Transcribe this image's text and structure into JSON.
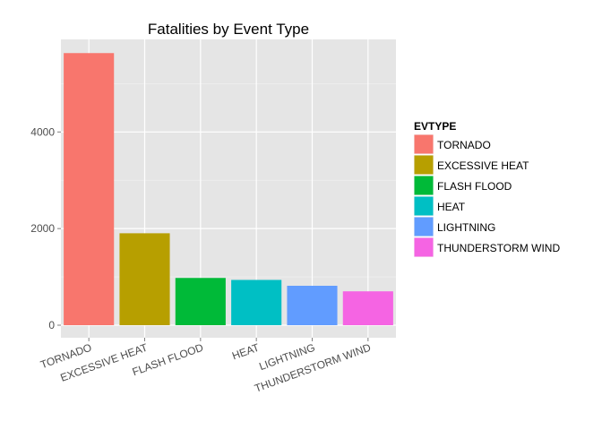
{
  "chart_data": {
    "type": "bar",
    "title": "Fatalities by Event Type",
    "xlabel": "",
    "ylabel": "",
    "categories": [
      "TORNADO",
      "EXCESSIVE HEAT",
      "FLASH FLOOD",
      "HEAT",
      "LIGHTNING",
      "THUNDERSTORM WIND"
    ],
    "values": [
      5633,
      1903,
      978,
      937,
      816,
      701
    ],
    "colors": [
      "#F8766D",
      "#B79F00",
      "#00BA38",
      "#00BFC4",
      "#619CFF",
      "#F564E3"
    ],
    "ylim": [
      0,
      5916
    ],
    "yticks": [
      0,
      2000,
      4000
    ],
    "ytick_labels": [
      "0",
      "2000",
      "4000"
    ],
    "grid": true,
    "legend": {
      "title": "EVTYPE",
      "placement": "right",
      "entries": [
        "TORNADO",
        "EXCESSIVE HEAT",
        "FLASH FLOOD",
        "HEAT",
        "LIGHTNING",
        "THUNDERSTORM WIND"
      ]
    }
  }
}
